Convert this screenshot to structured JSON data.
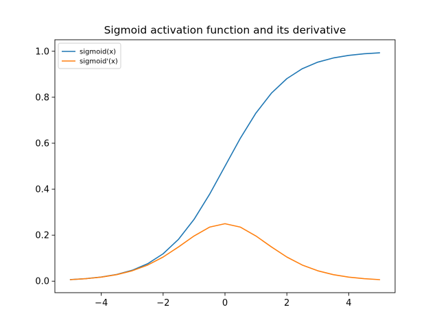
{
  "chart_data": {
    "type": "line",
    "title": "Sigmoid activation function and its derivative",
    "xlabel": "",
    "ylabel": "",
    "xlim": [
      -5.5,
      5.5
    ],
    "ylim": [
      -0.05,
      1.05
    ],
    "xticks": [
      -4,
      -2,
      0,
      2,
      4
    ],
    "xtick_labels": [
      "−4",
      "−2",
      "0",
      "2",
      "4"
    ],
    "yticks": [
      0.0,
      0.2,
      0.4,
      0.6,
      0.8,
      1.0
    ],
    "ytick_labels": [
      "0.0",
      "0.2",
      "0.4",
      "0.6",
      "0.8",
      "1.0"
    ],
    "grid": false,
    "legend_position": "top-left",
    "x": [
      -5,
      -4.5,
      -4,
      -3.5,
      -3,
      -2.5,
      -2,
      -1.5,
      -1,
      -0.5,
      0,
      0.5,
      1,
      1.5,
      2,
      2.5,
      3,
      3.5,
      4,
      4.5,
      5
    ],
    "series": [
      {
        "name": "sigmoid(x)",
        "color": "#1f77b4",
        "values": [
          0.0067,
          0.011,
          0.018,
          0.0293,
          0.0474,
          0.0759,
          0.1192,
          0.1824,
          0.2689,
          0.3775,
          0.5,
          0.6225,
          0.7311,
          0.8176,
          0.8808,
          0.9241,
          0.9526,
          0.9707,
          0.982,
          0.989,
          0.9933
        ]
      },
      {
        "name": "sigmoid'(x)",
        "color": "#ff7f0e",
        "values": [
          0.0066,
          0.0109,
          0.0177,
          0.0285,
          0.0452,
          0.0701,
          0.105,
          0.1491,
          0.1966,
          0.235,
          0.25,
          0.235,
          0.1966,
          0.1491,
          0.105,
          0.0701,
          0.0452,
          0.0285,
          0.0177,
          0.0109,
          0.0066
        ]
      }
    ]
  }
}
